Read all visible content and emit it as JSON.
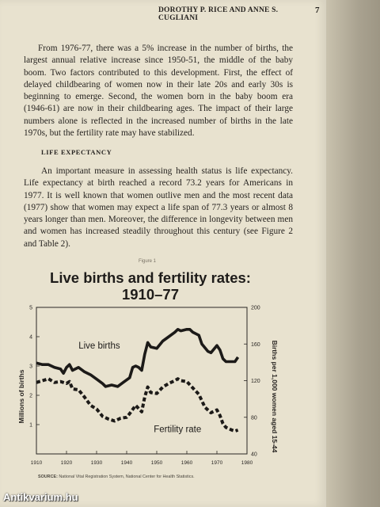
{
  "header": {
    "running_head": "DOROTHY P. RICE AND ANNE S. CUGLIANI",
    "page_number": "7"
  },
  "paragraph_1": "From 1976-77, there was a 5% increase in the number of births, the largest annual relative increase since 1950-51, the middle of the baby boom. Two factors contributed to this development. First, the effect of delayed childbearing of women now in their late 20s and early 30s is beginning to emerge. Second, the women born in the baby boom era (1946-61) are now in their childbearing ages. The impact of their large numbers alone is reflected in the increased number of births in the late 1970s, but the fertility rate may have stabilized.",
  "section_heading": "LIFE EXPECTANCY",
  "paragraph_2": "An important measure in assessing health status is life expectancy. Life expectancy at birth reached a record 73.2 years for Americans in 1977. It is well known that women outlive men and the most recent data (1977) show that women may expect a life span of 77.3 years or almost 8 years longer than men. Moreover, the difference in longevity between men and women has increased steadily throughout this century (see Figure 2 and Table 2).",
  "figure": {
    "label": "Figure 1",
    "title_line1": "Live births and fertility rates:",
    "title_line2": "1910–77",
    "source_label": "SOURCE:",
    "source_text": "National Vital Registration System, National Center for Health Statistics."
  },
  "chart_data": {
    "type": "line",
    "x_ticks": [
      1910,
      1920,
      1930,
      1940,
      1950,
      1960,
      1970,
      1980
    ],
    "xlim": [
      1910,
      1980
    ],
    "left_axis": {
      "label": "Millions of births",
      "ticks": [
        0,
        1,
        2,
        3,
        4,
        5
      ],
      "ylim": [
        0,
        5
      ]
    },
    "right_axis": {
      "label": "Births per 1,000 women aged 15-44",
      "ticks": [
        40,
        80,
        120,
        160,
        200
      ],
      "ylim": [
        40,
        200
      ]
    },
    "series": [
      {
        "name": "Live births",
        "axis": "left",
        "style": "solid",
        "x": [
          1910,
          1912,
          1914,
          1916,
          1918,
          1919,
          1920,
          1921,
          1922,
          1924,
          1926,
          1928,
          1930,
          1932,
          1933,
          1935,
          1937,
          1939,
          1941,
          1942,
          1943,
          1944,
          1945,
          1946,
          1947,
          1948,
          1950,
          1952,
          1954,
          1956,
          1957,
          1958,
          1960,
          1961,
          1962,
          1964,
          1965,
          1967,
          1968,
          1970,
          1971,
          1972,
          1973,
          1975,
          1976,
          1977
        ],
        "values": [
          3.1,
          3.05,
          3.05,
          2.95,
          2.9,
          2.75,
          2.95,
          3.05,
          2.85,
          2.95,
          2.8,
          2.7,
          2.55,
          2.4,
          2.3,
          2.35,
          2.3,
          2.45,
          2.6,
          2.95,
          3.0,
          2.95,
          2.85,
          3.4,
          3.8,
          3.65,
          3.6,
          3.85,
          4.0,
          4.15,
          4.25,
          4.2,
          4.25,
          4.25,
          4.15,
          4.05,
          3.75,
          3.5,
          3.45,
          3.7,
          3.55,
          3.25,
          3.15,
          3.15,
          3.15,
          3.3
        ]
      },
      {
        "name": "Fertility rate",
        "axis": "right",
        "style": "dashed",
        "x": [
          1910,
          1912,
          1914,
          1916,
          1918,
          1920,
          1921,
          1922,
          1924,
          1926,
          1928,
          1930,
          1932,
          1934,
          1936,
          1938,
          1940,
          1941,
          1943,
          1945,
          1946,
          1947,
          1948,
          1950,
          1952,
          1954,
          1956,
          1957,
          1958,
          1960,
          1962,
          1964,
          1966,
          1968,
          1970,
          1971,
          1972,
          1973,
          1975,
          1976,
          1977
        ],
        "values": [
          118,
          120,
          122,
          118,
          119,
          117,
          119,
          111,
          110,
          102,
          93,
          89,
          81,
          78,
          76,
          79,
          80,
          84,
          93,
          86,
          102,
          113,
          107,
          106,
          113,
          117,
          120,
          122,
          120,
          119,
          112,
          105,
          91,
          85,
          88,
          82,
          73,
          69,
          66,
          65,
          66
        ]
      }
    ]
  },
  "watermark": "Antikvarium.hu"
}
